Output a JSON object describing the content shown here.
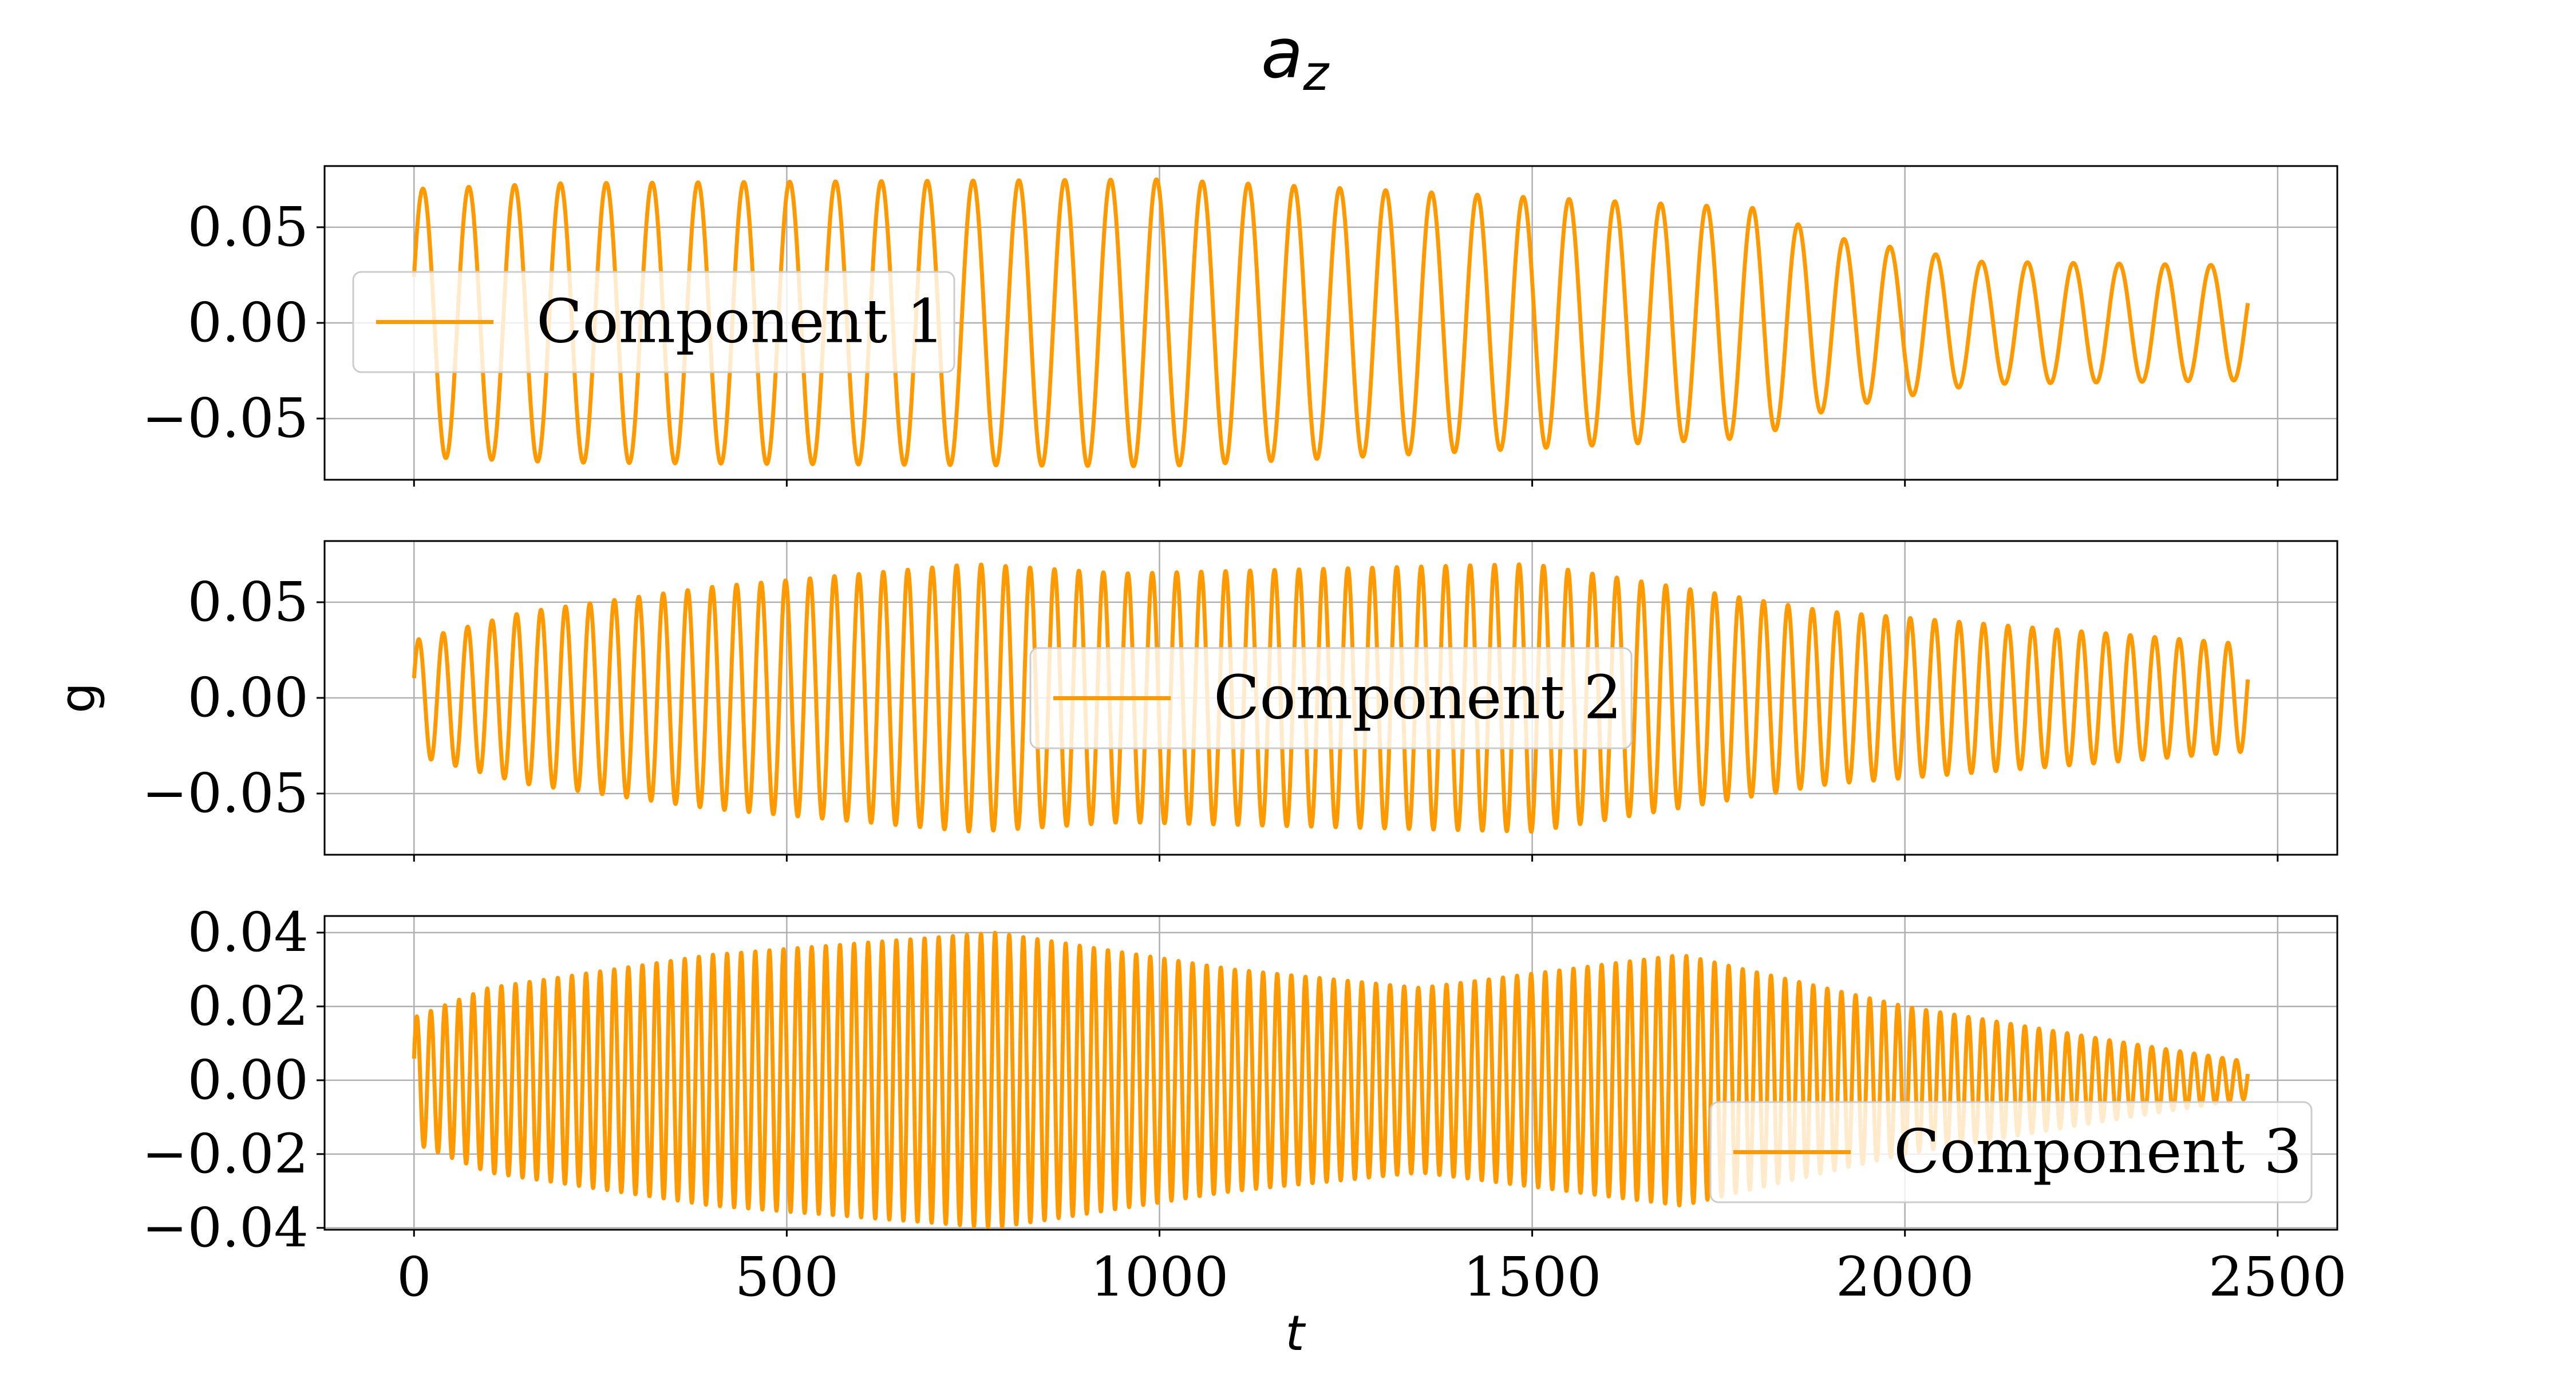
{
  "chart_data": {
    "type": "line",
    "title": "a",
    "title_subscript": "z",
    "xlabel": "t",
    "ylabel": "g",
    "grid": true,
    "line_color": "#ff9900",
    "x_range": [
      0,
      2460
    ],
    "xlim": [
      -120,
      2580
    ],
    "x_ticks": [
      0,
      500,
      1000,
      1500,
      2000,
      2500
    ],
    "x_tick_labels": [
      "0",
      "500",
      "1000",
      "1500",
      "2000",
      "2500"
    ],
    "subplots": [
      {
        "name": "Component 1",
        "legend_position": "upper-left",
        "ylim": [
          -0.082,
          0.082
        ],
        "y_ticks": [
          0.05,
          0.0,
          -0.05
        ],
        "y_tick_labels": [
          "0.05",
          "0.00",
          "−0.05"
        ],
        "cycles": 40,
        "envelope": {
          "t": [
            0,
            200,
            1000,
            1800,
            1900,
            2100,
            2460
          ],
          "amplitude": [
            0.07,
            0.073,
            0.075,
            0.06,
            0.045,
            0.032,
            0.03
          ]
        }
      },
      {
        "name": "Component 2",
        "legend_position": "center",
        "ylim": [
          -0.082,
          0.082
        ],
        "y_ticks": [
          0.05,
          0.0,
          -0.05
        ],
        "y_tick_labels": [
          "0.05",
          "0.00",
          "−0.05"
        ],
        "cycles": 75,
        "envelope": {
          "t": [
            0,
            150,
            400,
            750,
            950,
            1500,
            1900,
            2460
          ],
          "amplitude": [
            0.03,
            0.045,
            0.058,
            0.07,
            0.065,
            0.07,
            0.045,
            0.028
          ]
        }
      },
      {
        "name": "Component 3",
        "legend_position": "lower-right",
        "ylim": [
          -0.0405,
          0.0445
        ],
        "y_ticks": [
          0.04,
          0.02,
          0.0,
          -0.02,
          -0.04
        ],
        "y_tick_labels": [
          "0.04",
          "0.02",
          "0.00",
          "−0.02",
          "−0.04"
        ],
        "cycles": 130,
        "envelope": {
          "t": [
            0,
            100,
            400,
            780,
            1100,
            1350,
            1700,
            2000,
            2300,
            2460
          ],
          "amplitude": [
            0.017,
            0.025,
            0.034,
            0.04,
            0.03,
            0.025,
            0.034,
            0.02,
            0.01,
            0.005
          ]
        }
      }
    ]
  }
}
